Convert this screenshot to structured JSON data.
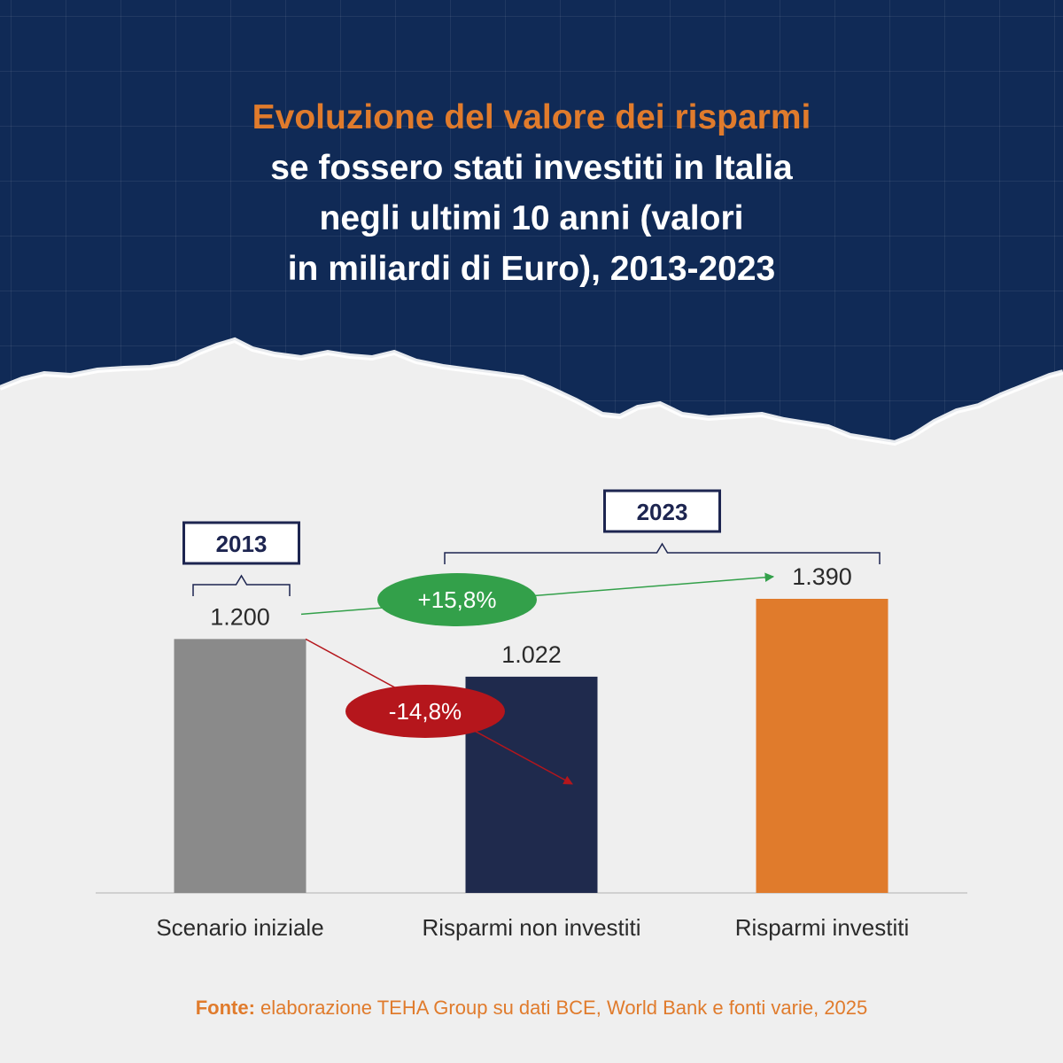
{
  "title": {
    "line1": "Evoluzione del valore dei risparmi",
    "rest": "se fossero stati investiti in Italia\nnegli ultimi 10 anni (valori\nin miliardi di Euro), 2013-2023"
  },
  "colors": {
    "header_bg": "#102a56",
    "accent_orange": "#e07b2c",
    "bar_gray": "#8a8a8a",
    "bar_navy": "#1f2a4d",
    "positive_green": "#33a04a",
    "negative_red": "#b5161c"
  },
  "chart_data": {
    "type": "bar",
    "categories": [
      "Scenario iniziale",
      "Risparmi non investiti",
      "Risparmi investiti"
    ],
    "values": [
      1200,
      1022,
      1390
    ],
    "value_labels": [
      "1.200",
      "1.022",
      "1.390"
    ],
    "bar_colors": [
      "#8a8a8a",
      "#1f2a4d",
      "#e07b2c"
    ],
    "ylim": [
      0,
      1390
    ],
    "year_groups": [
      {
        "label": "2013",
        "categories": [
          0
        ]
      },
      {
        "label": "2023",
        "categories": [
          1,
          2
        ]
      }
    ],
    "changes": [
      {
        "label": "+15,8%",
        "from": 0,
        "to": 2,
        "color": "#33a04a"
      },
      {
        "label": "-14,8%",
        "from": 0,
        "to": 1,
        "color": "#b5161c"
      }
    ]
  },
  "source": {
    "label": "Fonte:",
    "text": " elaborazione TEHA Group su dati BCE, World Bank e fonti varie, 2025"
  }
}
